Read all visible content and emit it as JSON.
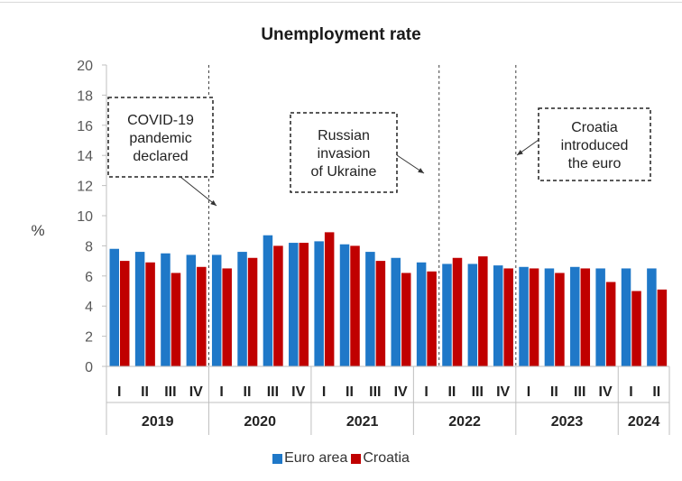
{
  "chart_data": {
    "type": "bar",
    "title": "Unemployment rate",
    "ylabel": "%",
    "ylim": [
      0,
      20
    ],
    "yticks": [
      0,
      2,
      4,
      6,
      8,
      10,
      12,
      14,
      16,
      18,
      20
    ],
    "quarters": [
      "I",
      "II",
      "III",
      "IV",
      "I",
      "II",
      "III",
      "IV",
      "I",
      "II",
      "III",
      "IV",
      "I",
      "II",
      "III",
      "IV",
      "I",
      "II",
      "III",
      "IV",
      "I",
      "II"
    ],
    "years": [
      {
        "label": "2019",
        "span": 4
      },
      {
        "label": "2020",
        "span": 4
      },
      {
        "label": "2021",
        "span": 4
      },
      {
        "label": "2022",
        "span": 4
      },
      {
        "label": "2023",
        "span": 4
      },
      {
        "label": "2024",
        "span": 2
      }
    ],
    "series": [
      {
        "name": "Euro area",
        "color": "#1f78c8",
        "values": [
          7.8,
          7.6,
          7.5,
          7.4,
          7.4,
          7.6,
          8.7,
          8.2,
          8.3,
          8.1,
          7.6,
          7.2,
          6.9,
          6.8,
          6.8,
          6.7,
          6.6,
          6.5,
          6.6,
          6.5,
          6.5,
          6.5
        ]
      },
      {
        "name": "Croatia",
        "color": "#c00000",
        "values": [
          7.0,
          6.9,
          6.2,
          6.6,
          6.5,
          7.2,
          8.0,
          8.2,
          8.9,
          8.0,
          7.0,
          6.2,
          6.3,
          7.2,
          7.3,
          6.5,
          6.5,
          6.2,
          6.5,
          5.6,
          5.0,
          5.1
        ]
      }
    ],
    "annotations": [
      {
        "lines": [
          "COVID-19",
          "pandemic",
          "declared"
        ],
        "after_index": 3
      },
      {
        "lines": [
          "Russian",
          "invasion",
          "of Ukraine"
        ],
        "after_index": 12
      },
      {
        "lines": [
          "Croatia",
          "introduced",
          "the euro"
        ],
        "after_index": 15
      }
    ],
    "legend_position": "bottom",
    "grid": false
  }
}
